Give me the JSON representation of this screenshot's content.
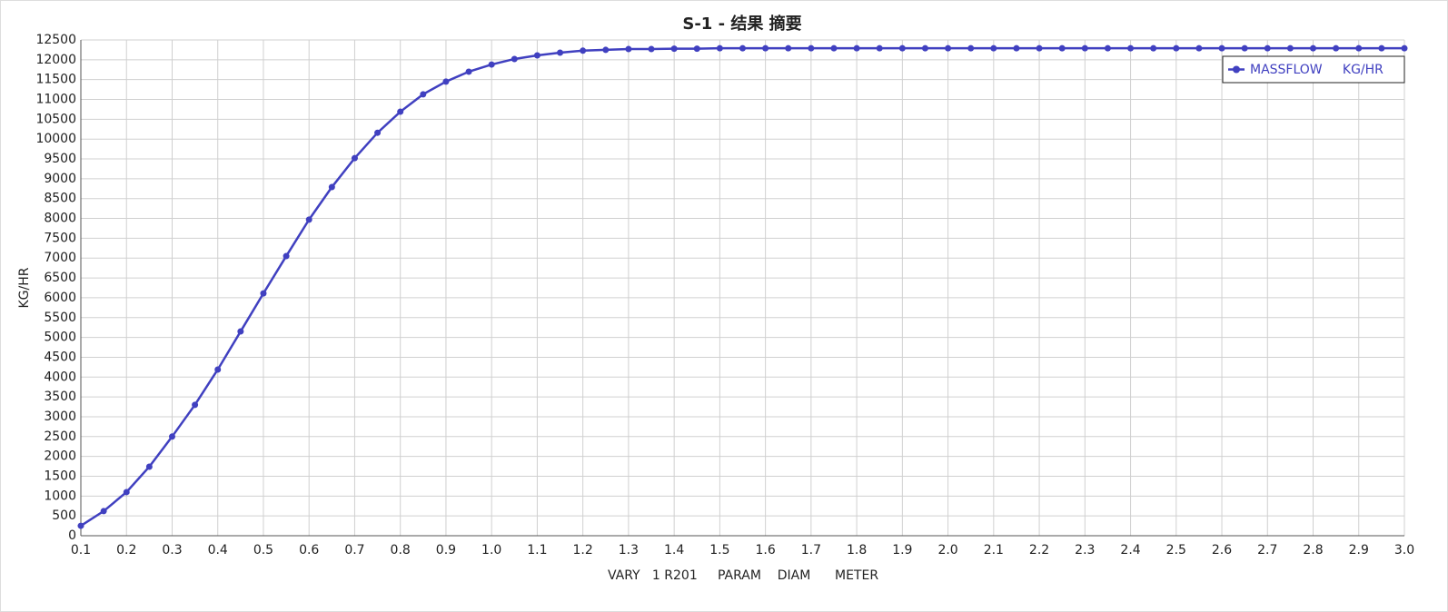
{
  "chart_data": {
    "type": "line",
    "title": "S-1 - 结果 摘要",
    "x_label": "VARY   1 R201     PARAM    DIAM      METER",
    "y_label": "KG/HR",
    "x": [
      0.1,
      0.15,
      0.2,
      0.25,
      0.3,
      0.35,
      0.4,
      0.45,
      0.5,
      0.55,
      0.6,
      0.65,
      0.7,
      0.75,
      0.8,
      0.85,
      0.9,
      0.95,
      1.0,
      1.05,
      1.1,
      1.15,
      1.2,
      1.25,
      1.3,
      1.35,
      1.4,
      1.45,
      1.5,
      1.55,
      1.6,
      1.65,
      1.7,
      1.75,
      1.8,
      1.85,
      1.9,
      1.95,
      2.0,
      2.05,
      2.1,
      2.15,
      2.2,
      2.25,
      2.3,
      2.35,
      2.4,
      2.45,
      2.5,
      2.55,
      2.6,
      2.65,
      2.7,
      2.75,
      2.8,
      2.85,
      2.9,
      2.95,
      3.0
    ],
    "series": [
      {
        "name": "MASSFLOW     KG/HR",
        "color": "#4040c0",
        "values": [
          250,
          620,
          1100,
          1740,
          2500,
          3300,
          4190,
          5150,
          6110,
          7050,
          7970,
          8790,
          9520,
          10160,
          10690,
          11130,
          11450,
          11700,
          11880,
          12020,
          12110,
          12180,
          12230,
          12250,
          12270,
          12270,
          12280,
          12280,
          12290,
          12290,
          12290,
          12290,
          12290,
          12290,
          12290,
          12290,
          12290,
          12290,
          12290,
          12290,
          12290,
          12290,
          12290,
          12290,
          12290,
          12290,
          12290,
          12290,
          12290,
          12290,
          12290,
          12290,
          12290,
          12290,
          12290,
          12290,
          12290,
          12290,
          12290
        ]
      }
    ],
    "xlim": [
      0.1,
      3.0
    ],
    "ylim": [
      0,
      12500
    ],
    "xticks": [
      0.1,
      0.2,
      0.3,
      0.4,
      0.5,
      0.6,
      0.7,
      0.8,
      0.9,
      {
        "value": 1,
        "label": "1.0"
      },
      1.1,
      1.2,
      1.3,
      1.4,
      1.5,
      1.6,
      1.7,
      1.8,
      1.9,
      {
        "value": 2,
        "label": "2.0"
      },
      2.1,
      2.2,
      2.3,
      2.4,
      2.5,
      2.6,
      2.7,
      2.8,
      2.9,
      {
        "value": 3,
        "label": "3.0"
      }
    ],
    "yticks": [
      0,
      500,
      1000,
      1500,
      2000,
      2500,
      3000,
      3500,
      4000,
      4500,
      5000,
      5500,
      6000,
      6500,
      7000,
      7500,
      8000,
      8500,
      9000,
      9500,
      10000,
      10500,
      11000,
      11500,
      12000,
      12500
    ],
    "grid": true,
    "legend": "upper-right"
  }
}
